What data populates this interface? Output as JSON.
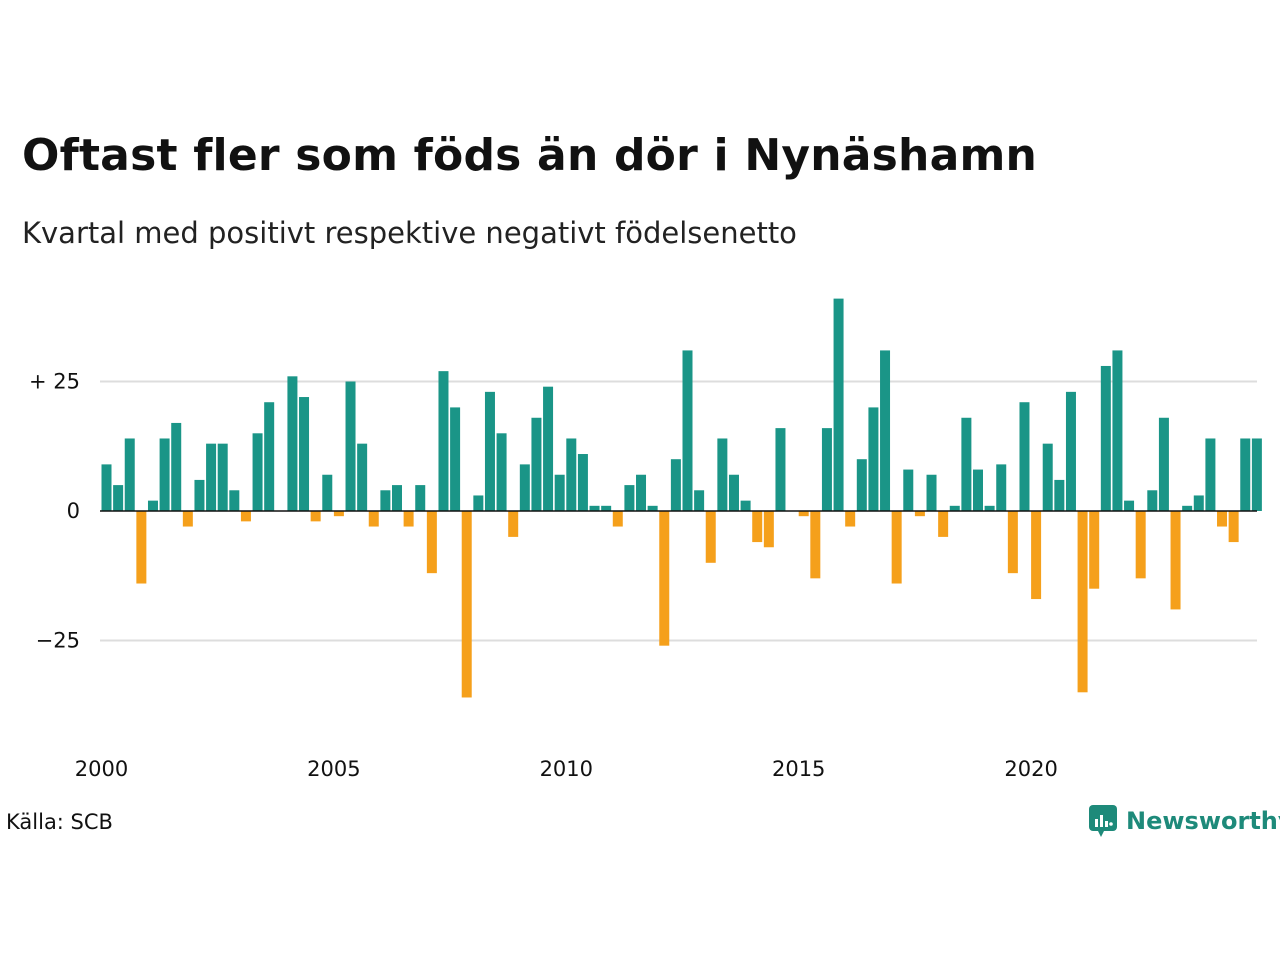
{
  "title": "Oftast fler som föds än dör i Nynäshamn",
  "subtitle": "Kvartal med positivt respektive negativt födelsenetto",
  "source": "Källa: SCB",
  "brand": "Newsworthy",
  "colors": {
    "positive": "#1a9587",
    "negative": "#f5a01b",
    "grid": "#dddddd",
    "brand": "#1e8a7a"
  },
  "chart_data": {
    "type": "bar",
    "title": "Oftast fler som föds än dör i Nynäshamn",
    "subtitle": "Kvartal med positivt respektive negativt födelsenetto",
    "xlabel": "",
    "ylabel": "",
    "ylim": [
      -38,
      42
    ],
    "grid": true,
    "y_ticks": [
      {
        "value": 25,
        "label": "+ 25"
      },
      {
        "value": 0,
        "label": "0"
      },
      {
        "value": -25,
        "label": "−25"
      }
    ],
    "x_ticks": [
      {
        "year": 2000,
        "label": "2000"
      },
      {
        "year": 2005,
        "label": "2005"
      },
      {
        "year": 2010,
        "label": "2010"
      },
      {
        "year": 2015,
        "label": "2015"
      },
      {
        "year": 2020,
        "label": "2020"
      }
    ],
    "start": {
      "year": 2000,
      "quarter": 1
    },
    "values": [
      9,
      5,
      14,
      -14,
      2,
      14,
      17,
      -3,
      6,
      13,
      13,
      4,
      -2,
      15,
      21,
      0,
      26,
      22,
      -2,
      7,
      -1,
      25,
      13,
      -3,
      4,
      5,
      -3,
      5,
      -12,
      27,
      20,
      -36,
      3,
      23,
      15,
      -5,
      9,
      18,
      24,
      7,
      14,
      11,
      1,
      1,
      -3,
      5,
      7,
      1,
      -26,
      10,
      31,
      4,
      -10,
      14,
      7,
      2,
      -6,
      -7,
      16,
      0,
      -1,
      -13,
      16,
      41,
      -3,
      10,
      20,
      31,
      -14,
      8,
      -1,
      7,
      -5,
      1,
      18,
      8,
      1,
      9,
      -12,
      21,
      -17,
      13,
      6,
      23,
      -35,
      -15,
      28,
      31,
      2,
      -13,
      4,
      18,
      -19,
      1,
      3,
      14,
      -3,
      -6,
      14,
      14
    ]
  }
}
